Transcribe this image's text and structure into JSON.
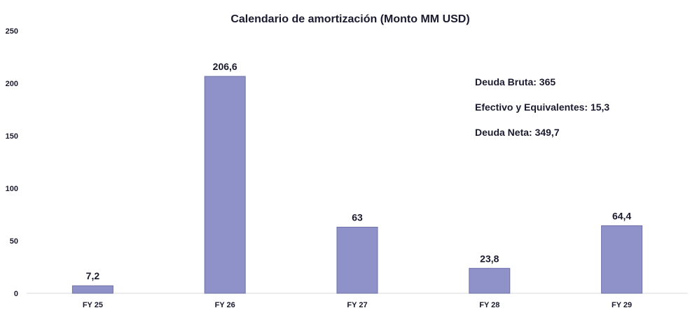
{
  "chart_data": {
    "type": "bar",
    "title": "Calendario de amortización (Monto MM USD)",
    "xlabel": "",
    "ylabel": "",
    "categories": [
      "FY 25",
      "FY 26",
      "FY 27",
      "FY 28",
      "FY 29"
    ],
    "values": [
      7.2,
      206.6,
      63,
      23.8,
      64.4
    ],
    "value_labels": [
      "7,2",
      "206,6",
      "63",
      "23,8",
      "64,4"
    ],
    "ylim": [
      0,
      250
    ],
    "yticks": [
      0,
      50,
      100,
      150,
      200,
      250
    ],
    "grid": false,
    "legend": "none",
    "bar_color": "#8e92c8",
    "bar_edge_color": "#6e72a8",
    "annotations": [
      "Deuda Bruta: 365",
      "Efectivo y Equivalentes: 15,3",
      "Deuda Neta: 349,7"
    ]
  }
}
